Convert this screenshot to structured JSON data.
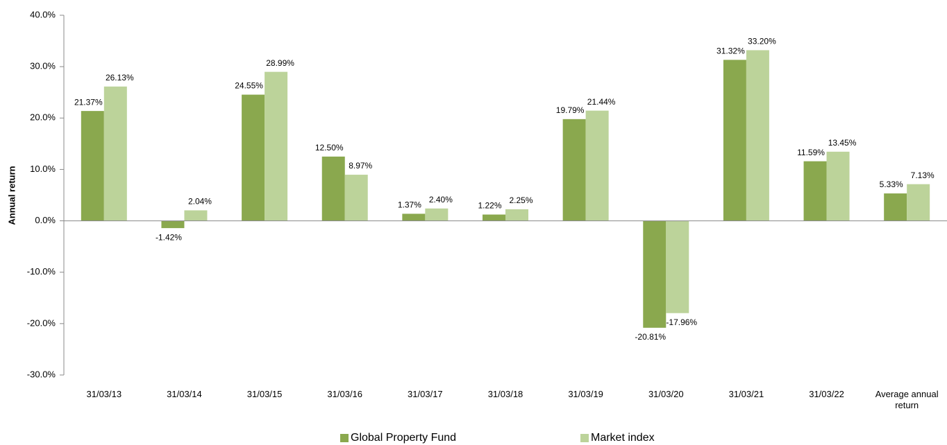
{
  "chart_data": {
    "type": "bar",
    "y_label": "Annual return",
    "categories": [
      "31/03/13",
      "31/03/14",
      "31/03/15",
      "31/03/16",
      "31/03/17",
      "31/03/18",
      "31/03/19",
      "31/03/20",
      "31/03/21",
      "31/03/22",
      "Average annual return"
    ],
    "series": [
      {
        "name": "Global Property Fund",
        "color": "#8aa84e",
        "values": [
          21.37,
          -1.42,
          24.55,
          12.5,
          1.37,
          1.22,
          19.79,
          -20.81,
          31.32,
          11.59,
          5.33
        ],
        "value_labels": [
          "21.37%",
          "-1.42%",
          "24.55%",
          "12.50%",
          "1.37%",
          "1.22%",
          "19.79%",
          "-20.81%",
          "31.32%",
          "11.59%",
          "5.33%"
        ]
      },
      {
        "name": "Market index",
        "color": "#bcd39a",
        "values": [
          26.13,
          2.04,
          28.99,
          8.97,
          2.4,
          2.25,
          21.44,
          -17.96,
          33.2,
          13.45,
          7.13
        ],
        "value_labels": [
          "26.13%",
          "2.04%",
          "28.99%",
          "8.97%",
          "2.40%",
          "2.25%",
          "21.44%",
          "-17.96%",
          "33.20%",
          "13.45%",
          "7.13%"
        ]
      }
    ],
    "ylim": [
      -30,
      40
    ],
    "yticks": [
      {
        "value": -30,
        "label": "-30.0%"
      },
      {
        "value": -20,
        "label": "-20.0%"
      },
      {
        "value": -10,
        "label": "-10.0%"
      },
      {
        "value": 0,
        "label": "0.0%"
      },
      {
        "value": 10,
        "label": "10.0%"
      },
      {
        "value": 20,
        "label": "20.0%"
      },
      {
        "value": 30,
        "label": "30.0%"
      },
      {
        "value": 40,
        "label": "40.0%"
      }
    ],
    "grid": false,
    "legend": "bottom"
  }
}
